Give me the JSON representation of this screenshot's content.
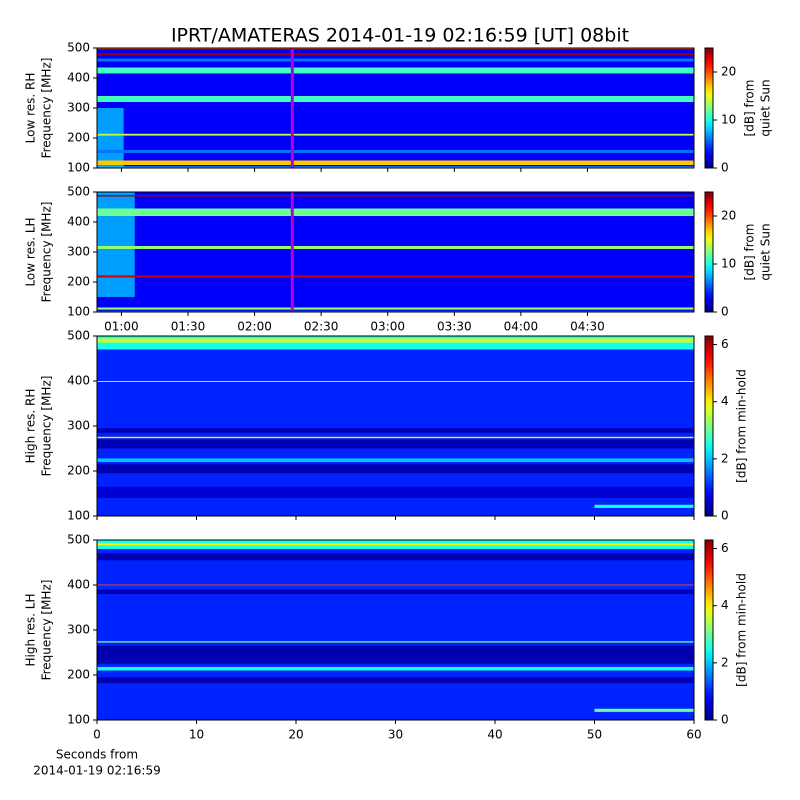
{
  "title": "IPRT/AMATERAS 2014-01-19 02:16:59 [UT]   08bit",
  "chart_data": [
    {
      "type": "heatmap",
      "colormap": "jet",
      "ylabel": [
        "Low res. RH",
        "Frequency [MHz]"
      ],
      "ylim": [
        100,
        500
      ],
      "yticks": [
        100,
        200,
        300,
        400,
        500
      ],
      "xlim": [
        49,
        318
      ],
      "marker_x": 137,
      "marker_color": "#b400e0",
      "clim": [
        0,
        25
      ],
      "cticks": [
        0,
        10,
        20
      ],
      "clabel": [
        "[dB] from",
        "quiet Sun"
      ],
      "bands": [
        {
          "y": [
            100,
            500
          ],
          "value": 3
        },
        {
          "x": [
            49,
            61
          ],
          "y": [
            100,
            300
          ],
          "value": 7
        },
        {
          "y": [
            496,
            500
          ],
          "value": 20
        },
        {
          "y": [
            476,
            482
          ],
          "value": 24
        },
        {
          "y": [
            455,
            465
          ],
          "value": 6
        },
        {
          "y": [
            415,
            435
          ],
          "value": 11
        },
        {
          "y": [
            320,
            340
          ],
          "value": 11
        },
        {
          "y": [
            208,
            214
          ],
          "value": 14
        },
        {
          "y": [
            150,
            160
          ],
          "value": 6
        },
        {
          "y": [
            110,
            125
          ],
          "value": 17
        },
        {
          "y": [
            100,
            105
          ],
          "value": 8
        }
      ]
    },
    {
      "type": "heatmap",
      "colormap": "jet",
      "ylabel": [
        "Low res. LH",
        "Frequency [MHz]"
      ],
      "ylim": [
        100,
        500
      ],
      "yticks": [
        100,
        200,
        300,
        400,
        500
      ],
      "xlim": [
        49,
        318
      ],
      "marker_x": 137,
      "marker_color": "#b400e0",
      "xticks": [
        {
          "value": 60,
          "label": "01:00"
        },
        {
          "value": 90,
          "label": "01:30"
        },
        {
          "value": 120,
          "label": "02:00"
        },
        {
          "value": 150,
          "label": "02:30"
        },
        {
          "value": 180,
          "label": "03:00"
        },
        {
          "value": 210,
          "label": "03:30"
        },
        {
          "value": 240,
          "label": "04:00"
        },
        {
          "value": 270,
          "label": "04:30"
        }
      ],
      "clim": [
        0,
        25
      ],
      "cticks": [
        0,
        10,
        20
      ],
      "clabel": [
        "[dB] from",
        "quiet Sun"
      ],
      "bands": [
        {
          "y": [
            100,
            500
          ],
          "value": 3
        },
        {
          "x": [
            49,
            66
          ],
          "y": [
            150,
            500
          ],
          "value": 7
        },
        {
          "y": [
            485,
            490
          ],
          "value": 24
        },
        {
          "y": [
            420,
            445
          ],
          "value": 12
        },
        {
          "y": [
            310,
            320
          ],
          "value": 13
        },
        {
          "y": [
            215,
            222
          ],
          "value": 23
        },
        {
          "y": [
            108,
            115
          ],
          "value": 13
        },
        {
          "y": [
            100,
            104
          ],
          "value": 6
        }
      ]
    },
    {
      "type": "heatmap",
      "colormap": "jet",
      "ylabel": [
        "High res. RH",
        "Frequency [MHz]"
      ],
      "ylim": [
        100,
        500
      ],
      "yticks": [
        100,
        200,
        300,
        400,
        500
      ],
      "xlim": [
        0,
        60
      ],
      "clim": [
        0,
        6.3
      ],
      "cticks": [
        0,
        2,
        4,
        6
      ],
      "clabel": [
        "[dB] from min-hold"
      ],
      "bands": [
        {
          "y": [
            100,
            500
          ],
          "value": 1
        },
        {
          "y": [
            470,
            500
          ],
          "value": 2.5
        },
        {
          "y": [
            485,
            495
          ],
          "value": 3.5
        },
        {
          "y": [
            285,
            295
          ],
          "value": 0.3
        },
        {
          "y": [
            250,
            270
          ],
          "value": 0.3
        },
        {
          "y": [
            273,
            276
          ],
          "value": 4
        },
        {
          "y": [
            195,
            215
          ],
          "value": 0.3
        },
        {
          "y": [
            220,
            228
          ],
          "value": 2
        },
        {
          "y": [
            140,
            165
          ],
          "value": 0.5
        },
        {
          "y": [
            398,
            400
          ],
          "value": 4
        },
        {
          "x": [
            50,
            60
          ],
          "y": [
            118,
            125
          ],
          "value": 2.5
        }
      ]
    },
    {
      "type": "heatmap",
      "colormap": "jet",
      "ylabel": [
        "High res. LH",
        "Frequency [MHz]"
      ],
      "ylim": [
        100,
        500
      ],
      "yticks": [
        100,
        200,
        300,
        400,
        500
      ],
      "xlim": [
        0,
        60
      ],
      "xticks": [
        0,
        10,
        20,
        30,
        40,
        50,
        60
      ],
      "xlabel": [
        "Seconds from",
        "2014-01-19 02:16:59"
      ],
      "clim": [
        0,
        6.3
      ],
      "cticks": [
        0,
        2,
        4,
        6
      ],
      "clabel": [
        "[dB] from min-hold"
      ],
      "bands": [
        {
          "y": [
            100,
            500
          ],
          "value": 1
        },
        {
          "y": [
            480,
            500
          ],
          "value": 2.5
        },
        {
          "y": [
            488,
            493
          ],
          "value": 4
        },
        {
          "y": [
            455,
            470
          ],
          "value": 0.3
        },
        {
          "y": [
            380,
            390
          ],
          "value": 0.3
        },
        {
          "y": [
            399,
            401
          ],
          "value": 5
        },
        {
          "y": [
            225,
            265
          ],
          "value": 0.3
        },
        {
          "y": [
            272,
            275
          ],
          "value": 3
        },
        {
          "y": [
            210,
            218
          ],
          "value": 2.5
        },
        {
          "y": [
            182,
            195
          ],
          "value": 0.3
        },
        {
          "x": [
            50,
            60
          ],
          "y": [
            118,
            125
          ],
          "value": 3
        }
      ]
    }
  ]
}
